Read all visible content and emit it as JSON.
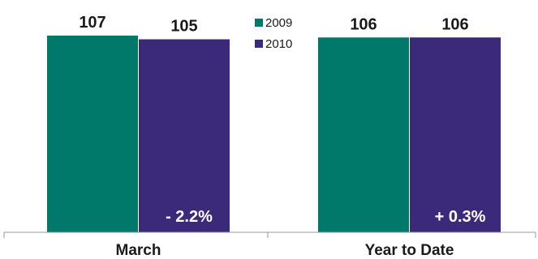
{
  "chart_data": {
    "type": "bar",
    "categories": [
      "March",
      "Year to Date"
    ],
    "series": [
      {
        "name": "2009",
        "color": "#00796b",
        "values": [
          107,
          106
        ]
      },
      {
        "name": "2010",
        "color": "#3b2a7a",
        "values": [
          105,
          106
        ]
      }
    ],
    "change_labels": [
      "- 2.2%",
      "+ 0.3%"
    ],
    "ylim": [
      0,
      107
    ],
    "grid": false,
    "legend_position": "top-center",
    "title": "",
    "xlabel": "",
    "ylabel": ""
  }
}
